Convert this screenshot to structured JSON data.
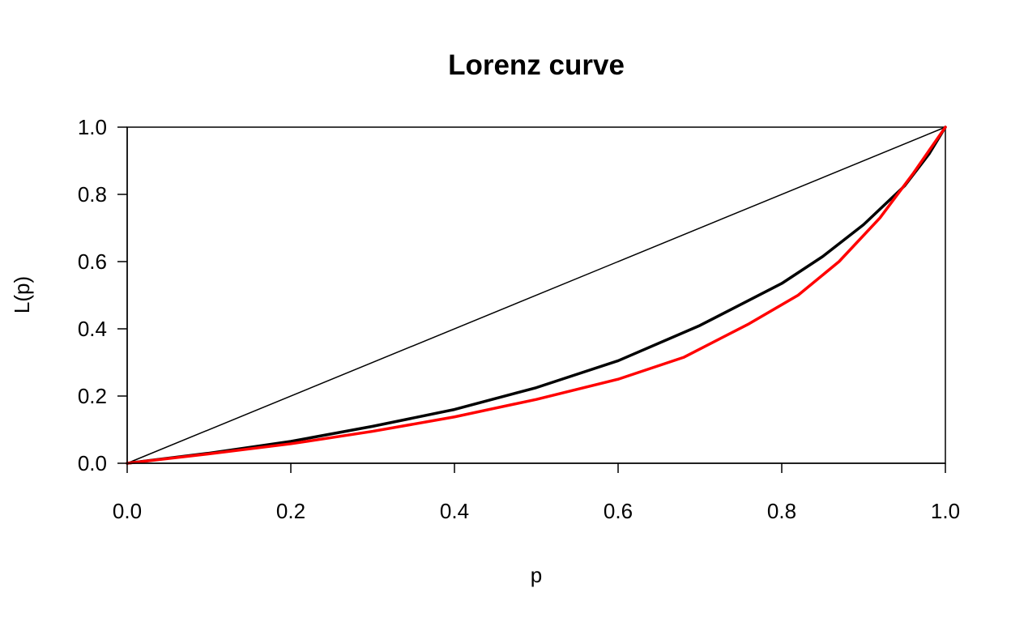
{
  "chart_data": {
    "type": "line",
    "title": "Lorenz curve",
    "xlabel": "p",
    "ylabel": "L(p)",
    "xlim": [
      0,
      1
    ],
    "ylim": [
      0,
      1
    ],
    "x_ticks": [
      "0.0",
      "0.2",
      "0.4",
      "0.6",
      "0.8",
      "1.0"
    ],
    "y_ticks": [
      "0.0",
      "0.2",
      "0.4",
      "0.6",
      "0.8",
      "1.0"
    ],
    "grid": false,
    "legend": "none",
    "series": [
      {
        "style": "thin",
        "color": "#000000",
        "x": [
          0,
          1
        ],
        "y": [
          0,
          1
        ]
      },
      {
        "style": "thick",
        "color": "#000000",
        "x": [
          0,
          0.1,
          0.2,
          0.3,
          0.4,
          0.5,
          0.6,
          0.7,
          0.8,
          0.85,
          0.9,
          0.95,
          0.98,
          1.0
        ],
        "y": [
          0,
          0.03,
          0.065,
          0.11,
          0.16,
          0.225,
          0.305,
          0.41,
          0.535,
          0.615,
          0.71,
          0.825,
          0.92,
          1.0
        ]
      },
      {
        "style": "thick",
        "color": "#ff0000",
        "x": [
          0,
          0.1,
          0.2,
          0.3,
          0.4,
          0.5,
          0.6,
          0.68,
          0.76,
          0.82,
          0.87,
          0.92,
          0.96,
          0.98,
          1.0
        ],
        "y": [
          0,
          0.028,
          0.058,
          0.095,
          0.138,
          0.19,
          0.25,
          0.315,
          0.415,
          0.5,
          0.6,
          0.73,
          0.86,
          0.93,
          1.0
        ]
      }
    ]
  }
}
